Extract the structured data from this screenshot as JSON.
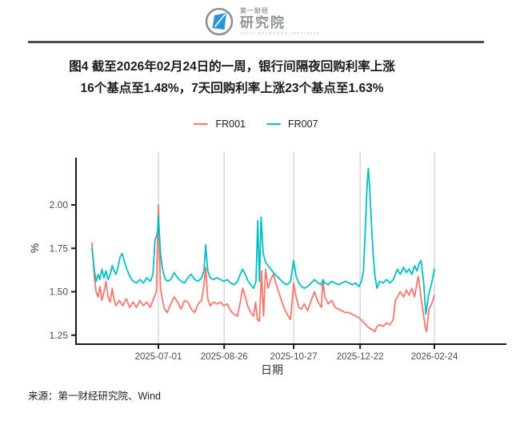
{
  "header": {
    "logo": {
      "brand_small": "第一财经",
      "brand_main": "研究院",
      "brand_caption": "YICAI RESEARCH INSTITUTE",
      "brand_color": "#2a95d3"
    }
  },
  "title": {
    "line1": "图4 截至2026年02月24日的一周，银行间隔夜回购利率上涨",
    "line2": "16个基点至1.48%，7天回购利率上涨23个基点至1.63%"
  },
  "footer": {
    "source": "来源：第一财经研究院、Wind"
  },
  "chart_data": {
    "type": "line",
    "xlabel": "日期",
    "ylabel": "%",
    "x_encoding": "percent_of_time_axis_0_to_100",
    "ylim": [
      1.2,
      2.25
    ],
    "yticks": [
      "2.00",
      "1.75",
      "1.50",
      "1.25"
    ],
    "ytick_values": [
      2.0,
      1.75,
      1.5,
      1.25
    ],
    "xticks": [
      {
        "pct": 19.4,
        "label": "2025-07-01"
      },
      {
        "pct": 38.6,
        "label": "2025-08-26"
      },
      {
        "pct": 58.9,
        "label": "2025-10-27"
      },
      {
        "pct": 78.3,
        "label": "2025-12-22"
      },
      {
        "pct": 100,
        "label": "2026-02-24"
      }
    ],
    "grid": "vertical_only",
    "legend_position": "top_center",
    "axis_color": "#1a1a1a",
    "grid_color": "#cccccc",
    "tick_label_color": "#4d4d4d",
    "series": [
      {
        "name": "FR001",
        "color": "#F8766D",
        "points": [
          [
            0,
            1.78
          ],
          [
            0.7,
            1.58
          ],
          [
            1.2,
            1.5
          ],
          [
            1.8,
            1.47
          ],
          [
            2.3,
            1.53
          ],
          [
            2.9,
            1.45
          ],
          [
            3.5,
            1.5
          ],
          [
            4.1,
            1.56
          ],
          [
            4.7,
            1.47
          ],
          [
            5.3,
            1.44
          ],
          [
            5.9,
            1.52
          ],
          [
            6.5,
            1.45
          ],
          [
            7,
            1.42
          ],
          [
            8,
            1.45
          ],
          [
            9,
            1.42
          ],
          [
            10,
            1.46
          ],
          [
            11,
            1.41
          ],
          [
            12,
            1.44
          ],
          [
            13,
            1.41
          ],
          [
            14,
            1.45
          ],
          [
            15,
            1.42
          ],
          [
            16,
            1.44
          ],
          [
            17,
            1.41
          ],
          [
            18,
            1.46
          ],
          [
            18.8,
            1.5
          ],
          [
            19.4,
            2.0
          ],
          [
            20,
            1.52
          ],
          [
            20.6,
            1.45
          ],
          [
            21.2,
            1.4
          ],
          [
            22,
            1.38
          ],
          [
            23,
            1.43
          ],
          [
            24,
            1.47
          ],
          [
            25,
            1.44
          ],
          [
            26,
            1.4
          ],
          [
            27,
            1.45
          ],
          [
            28,
            1.44
          ],
          [
            29,
            1.4
          ],
          [
            30,
            1.38
          ],
          [
            31,
            1.43
          ],
          [
            32,
            1.45
          ],
          [
            32.7,
            1.54
          ],
          [
            33.2,
            1.64
          ],
          [
            33.8,
            1.46
          ],
          [
            34.5,
            1.42
          ],
          [
            35.5,
            1.44
          ],
          [
            36.5,
            1.43
          ],
          [
            37.5,
            1.44
          ],
          [
            38.5,
            1.42
          ],
          [
            39.5,
            1.43
          ],
          [
            40.5,
            1.39
          ],
          [
            41.5,
            1.37
          ],
          [
            42.5,
            1.36
          ],
          [
            43.3,
            1.44
          ],
          [
            44,
            1.52
          ],
          [
            44.8,
            1.47
          ],
          [
            45.6,
            1.41
          ],
          [
            46.4,
            1.38
          ],
          [
            47.2,
            1.36
          ],
          [
            47.8,
            1.44
          ],
          [
            48.3,
            1.34
          ],
          [
            48.9,
            1.33
          ],
          [
            49.5,
            1.62
          ],
          [
            50.1,
            1.36
          ],
          [
            50.7,
            1.63
          ],
          [
            51.4,
            1.52
          ],
          [
            52.2,
            1.57
          ],
          [
            53,
            1.6
          ],
          [
            54,
            1.53
          ],
          [
            55,
            1.47
          ],
          [
            56,
            1.41
          ],
          [
            57,
            1.37
          ],
          [
            58,
            1.34
          ],
          [
            58.9,
            1.55
          ],
          [
            59.6,
            1.47
          ],
          [
            60.4,
            1.41
          ],
          [
            61.2,
            1.4
          ],
          [
            62,
            1.43
          ],
          [
            63,
            1.39
          ],
          [
            64,
            1.45
          ],
          [
            65,
            1.5
          ],
          [
            66,
            1.44
          ],
          [
            67,
            1.41
          ],
          [
            67.4,
            1.57
          ],
          [
            68,
            1.47
          ],
          [
            69,
            1.43
          ],
          [
            70,
            1.45
          ],
          [
            71,
            1.41
          ],
          [
            72,
            1.4
          ],
          [
            73,
            1.39
          ],
          [
            74,
            1.38
          ],
          [
            75,
            1.38
          ],
          [
            76,
            1.37
          ],
          [
            77,
            1.36
          ],
          [
            78,
            1.35
          ],
          [
            79,
            1.33
          ],
          [
            80,
            1.31
          ],
          [
            81,
            1.29
          ],
          [
            82,
            1.28
          ],
          [
            82.6,
            1.27
          ],
          [
            83.2,
            1.3
          ],
          [
            84,
            1.31
          ],
          [
            85,
            1.3
          ],
          [
            86,
            1.32
          ],
          [
            87,
            1.31
          ],
          [
            88,
            1.34
          ],
          [
            88.6,
            1.45
          ],
          [
            89.2,
            1.47
          ],
          [
            90,
            1.5
          ],
          [
            91,
            1.47
          ],
          [
            91.8,
            1.51
          ],
          [
            92.6,
            1.48
          ],
          [
            93.4,
            1.52
          ],
          [
            94.2,
            1.47
          ],
          [
            94.9,
            1.55
          ],
          [
            95.3,
            1.59
          ],
          [
            96,
            1.48
          ],
          [
            96.6,
            1.4
          ],
          [
            97.3,
            1.3
          ],
          [
            97.7,
            1.27
          ],
          [
            98.4,
            1.4
          ],
          [
            99.2,
            1.43
          ],
          [
            100,
            1.48
          ]
        ]
      },
      {
        "name": "FR007",
        "color": "#00BFC4",
        "points": [
          [
            0,
            1.75
          ],
          [
            0.7,
            1.62
          ],
          [
            1.2,
            1.56
          ],
          [
            1.8,
            1.6
          ],
          [
            2.3,
            1.57
          ],
          [
            2.9,
            1.63
          ],
          [
            3.5,
            1.58
          ],
          [
            4.1,
            1.62
          ],
          [
            4.7,
            1.57
          ],
          [
            5.3,
            1.6
          ],
          [
            5.9,
            1.65
          ],
          [
            6.5,
            1.62
          ],
          [
            7,
            1.6
          ],
          [
            7.6,
            1.64
          ],
          [
            8.2,
            1.7
          ],
          [
            8.8,
            1.72
          ],
          [
            9.4,
            1.68
          ],
          [
            10,
            1.64
          ],
          [
            11,
            1.59
          ],
          [
            12,
            1.56
          ],
          [
            13,
            1.55
          ],
          [
            14,
            1.57
          ],
          [
            15,
            1.55
          ],
          [
            16,
            1.58
          ],
          [
            17,
            1.56
          ],
          [
            17.8,
            1.6
          ],
          [
            18.4,
            1.8
          ],
          [
            18.9,
            1.82
          ],
          [
            19.2,
            1.86
          ],
          [
            19.4,
            1.94
          ],
          [
            20,
            1.72
          ],
          [
            20.6,
            1.63
          ],
          [
            21.2,
            1.58
          ],
          [
            22,
            1.56
          ],
          [
            23,
            1.57
          ],
          [
            24,
            1.61
          ],
          [
            25,
            1.58
          ],
          [
            26,
            1.56
          ],
          [
            27,
            1.55
          ],
          [
            28,
            1.58
          ],
          [
            29,
            1.6
          ],
          [
            30,
            1.57
          ],
          [
            31,
            1.56
          ],
          [
            32,
            1.58
          ],
          [
            32.7,
            1.62
          ],
          [
            33.2,
            1.77
          ],
          [
            33.8,
            1.62
          ],
          [
            34.5,
            1.58
          ],
          [
            35.5,
            1.57
          ],
          [
            36.5,
            1.58
          ],
          [
            37.5,
            1.57
          ],
          [
            38.5,
            1.56
          ],
          [
            39.5,
            1.57
          ],
          [
            40.5,
            1.55
          ],
          [
            41.5,
            1.54
          ],
          [
            42.5,
            1.56
          ],
          [
            43.3,
            1.6
          ],
          [
            44,
            1.63
          ],
          [
            44.8,
            1.6
          ],
          [
            45.6,
            1.56
          ],
          [
            46.4,
            1.54
          ],
          [
            47.2,
            1.52
          ],
          [
            47.9,
            1.56
          ],
          [
            48.4,
            1.91
          ],
          [
            48.9,
            1.56
          ],
          [
            49.4,
            1.93
          ],
          [
            50,
            1.72
          ],
          [
            50.7,
            1.67
          ],
          [
            51.4,
            1.65
          ],
          [
            52.2,
            1.63
          ],
          [
            53,
            1.61
          ],
          [
            54,
            1.59
          ],
          [
            55,
            1.57
          ],
          [
            56,
            1.55
          ],
          [
            57,
            1.54
          ],
          [
            58,
            1.56
          ],
          [
            58.9,
            1.68
          ],
          [
            59.6,
            1.59
          ],
          [
            60.4,
            1.55
          ],
          [
            61.2,
            1.53
          ],
          [
            62,
            1.52
          ],
          [
            63,
            1.53
          ],
          [
            64,
            1.55
          ],
          [
            65,
            1.57
          ],
          [
            66,
            1.55
          ],
          [
            67,
            1.54
          ],
          [
            67.4,
            1.57
          ],
          [
            68,
            1.55
          ],
          [
            69,
            1.54
          ],
          [
            70,
            1.56
          ],
          [
            71,
            1.55
          ],
          [
            72,
            1.54
          ],
          [
            73,
            1.55
          ],
          [
            74,
            1.56
          ],
          [
            75,
            1.55
          ],
          [
            76,
            1.54
          ],
          [
            77,
            1.55
          ],
          [
            78,
            1.53
          ],
          [
            78.7,
            1.56
          ],
          [
            79.3,
            1.62
          ],
          [
            79.9,
            1.9
          ],
          [
            80.3,
            2.1
          ],
          [
            80.7,
            2.21
          ],
          [
            81.1,
            2.1
          ],
          [
            81.6,
            1.9
          ],
          [
            82.1,
            1.72
          ],
          [
            82.6,
            1.6
          ],
          [
            83.2,
            1.52
          ],
          [
            84,
            1.56
          ],
          [
            85,
            1.55
          ],
          [
            86,
            1.57
          ],
          [
            87,
            1.55
          ],
          [
            88,
            1.57
          ],
          [
            88.6,
            1.6
          ],
          [
            89.2,
            1.63
          ],
          [
            90,
            1.6
          ],
          [
            91,
            1.64
          ],
          [
            91.8,
            1.61
          ],
          [
            92.6,
            1.63
          ],
          [
            93.4,
            1.6
          ],
          [
            94.2,
            1.65
          ],
          [
            94.9,
            1.62
          ],
          [
            95.5,
            1.66
          ],
          [
            96.1,
            1.68
          ],
          [
            96.9,
            1.55
          ],
          [
            97.5,
            1.37
          ],
          [
            98.3,
            1.48
          ],
          [
            99.2,
            1.55
          ],
          [
            100,
            1.63
          ]
        ]
      }
    ]
  }
}
